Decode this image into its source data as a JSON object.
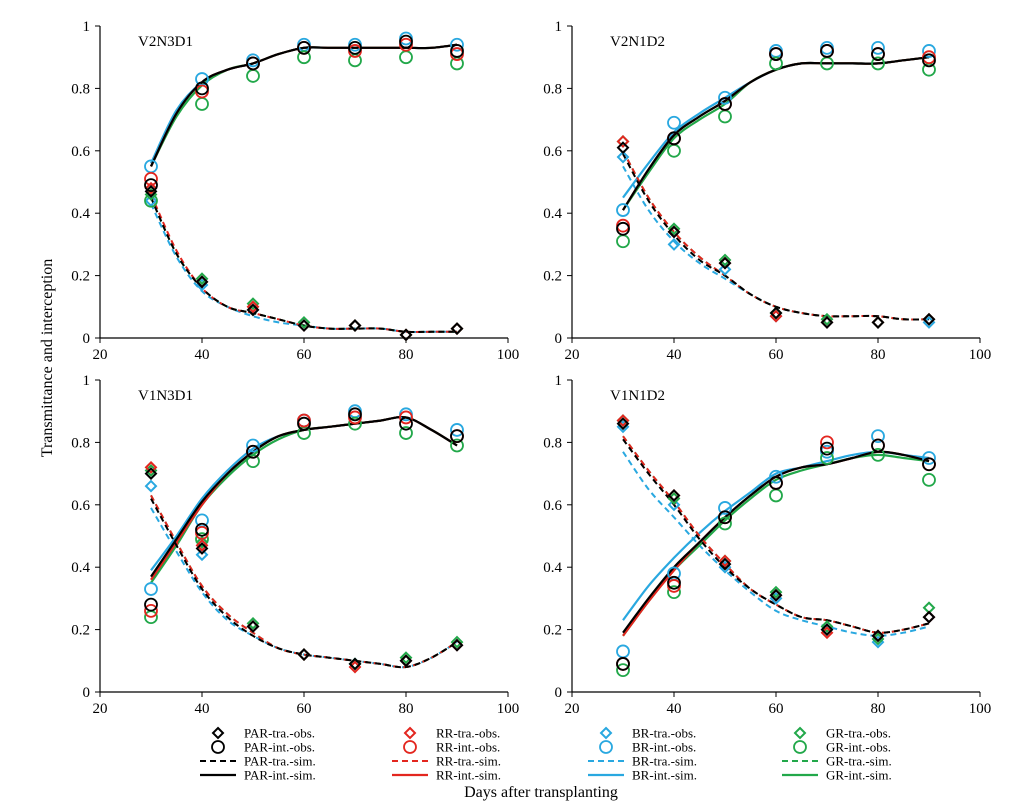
{
  "figure": {
    "ylabel": "Transmittance and interception",
    "xlabel": "Days after transplanting"
  },
  "colors": {
    "PAR": "#000000",
    "RR": "#e3261f",
    "BR": "#29a8e0",
    "GR": "#22a84a"
  },
  "legend": [
    {
      "key": "PAR",
      "kind": "tra-obs",
      "label": "PAR-tra.-obs."
    },
    {
      "key": "PAR",
      "kind": "int-obs",
      "label": "PAR-int.-obs."
    },
    {
      "key": "PAR",
      "kind": "tra-sim",
      "label": "PAR-tra.-sim."
    },
    {
      "key": "PAR",
      "kind": "int-sim",
      "label": "PAR-int.-sim."
    },
    {
      "key": "RR",
      "kind": "tra-obs",
      "label": "RR-tra.-obs."
    },
    {
      "key": "RR",
      "kind": "int-obs",
      "label": "RR-int.-obs."
    },
    {
      "key": "RR",
      "kind": "tra-sim",
      "label": "RR-tra.-sim."
    },
    {
      "key": "RR",
      "kind": "int-sim",
      "label": "RR-int.-sim."
    },
    {
      "key": "BR",
      "kind": "tra-obs",
      "label": "BR-tra.-obs."
    },
    {
      "key": "BR",
      "kind": "int-obs",
      "label": "BR-int.-obs."
    },
    {
      "key": "BR",
      "kind": "tra-sim",
      "label": "BR-tra.-sim."
    },
    {
      "key": "BR",
      "kind": "int-sim",
      "label": "BR-int.-sim."
    },
    {
      "key": "GR",
      "kind": "tra-obs",
      "label": "GR-tra.-obs."
    },
    {
      "key": "GR",
      "kind": "int-obs",
      "label": "GR-int.-obs."
    },
    {
      "key": "GR",
      "kind": "tra-sim",
      "label": "GR-tra.-sim."
    },
    {
      "key": "GR",
      "kind": "int-sim",
      "label": "GR-int.-sim."
    }
  ],
  "chart_data": [
    {
      "type": "scatter",
      "title": "V2N3D1",
      "xlim": [
        20,
        100
      ],
      "ylim": [
        0,
        1
      ],
      "xticks": [
        "20",
        "40",
        "60",
        "80",
        "100"
      ],
      "yticks": [
        "0",
        "0.2",
        "0.4",
        "0.6",
        "0.8",
        "1"
      ],
      "x_obs": [
        30,
        40,
        50,
        60,
        70,
        80,
        90
      ],
      "tra_obs": {
        "PAR": [
          0.47,
          0.18,
          0.09,
          0.04,
          0.04,
          0.01,
          0.03
        ],
        "RR": [
          0.48,
          0.18,
          0.1,
          0.04,
          0.04,
          0.01,
          0.03
        ],
        "BR": [
          0.44,
          0.17,
          0.09,
          0.04,
          0.04,
          0.01,
          0.03
        ],
        "GR": [
          0.46,
          0.19,
          0.11,
          0.05,
          0.04,
          0.01,
          0.03
        ]
      },
      "int_obs": {
        "PAR": [
          0.49,
          0.8,
          0.88,
          0.93,
          0.93,
          0.95,
          0.92
        ],
        "RR": [
          0.51,
          0.79,
          0.88,
          0.93,
          0.92,
          0.94,
          0.91
        ],
        "BR": [
          0.55,
          0.83,
          0.89,
          0.94,
          0.94,
          0.96,
          0.94
        ],
        "GR": [
          0.44,
          0.75,
          0.84,
          0.9,
          0.89,
          0.9,
          0.88
        ]
      },
      "x_sim": [
        30,
        35,
        40,
        45,
        50,
        55,
        60,
        65,
        70,
        75,
        80,
        85,
        90
      ],
      "tra_sim": {
        "PAR": [
          0.45,
          0.27,
          0.16,
          0.1,
          0.08,
          0.06,
          0.04,
          0.03,
          0.03,
          0.03,
          0.02,
          0.02,
          0.02
        ],
        "RR": [
          0.46,
          0.28,
          0.16,
          0.1,
          0.08,
          0.06,
          0.04,
          0.03,
          0.03,
          0.03,
          0.02,
          0.02,
          0.02
        ],
        "BR": [
          0.43,
          0.26,
          0.15,
          0.1,
          0.07,
          0.05,
          0.04,
          0.03,
          0.03,
          0.03,
          0.02,
          0.02,
          0.02
        ],
        "GR": [
          0.45,
          0.27,
          0.16,
          0.1,
          0.08,
          0.06,
          0.04,
          0.03,
          0.03,
          0.03,
          0.02,
          0.02,
          0.02
        ]
      },
      "int_sim": {
        "PAR": [
          0.55,
          0.72,
          0.82,
          0.86,
          0.88,
          0.91,
          0.93,
          0.93,
          0.93,
          0.93,
          0.93,
          0.93,
          0.94
        ],
        "RR": [
          0.55,
          0.72,
          0.82,
          0.86,
          0.88,
          0.91,
          0.93,
          0.93,
          0.93,
          0.93,
          0.93,
          0.93,
          0.94
        ],
        "BR": [
          0.56,
          0.73,
          0.82,
          0.86,
          0.88,
          0.91,
          0.93,
          0.93,
          0.93,
          0.93,
          0.93,
          0.93,
          0.94
        ],
        "GR": [
          0.55,
          0.71,
          0.81,
          0.86,
          0.88,
          0.91,
          0.93,
          0.93,
          0.93,
          0.93,
          0.93,
          0.93,
          0.94
        ]
      }
    },
    {
      "type": "scatter",
      "title": "V2N1D2",
      "xlim": [
        20,
        100
      ],
      "ylim": [
        0,
        1
      ],
      "xticks": [
        "20",
        "40",
        "60",
        "80",
        "100"
      ],
      "yticks": [
        "0",
        "0.2",
        "0.4",
        "0.6",
        "0.8",
        "1"
      ],
      "x_obs": [
        30,
        40,
        50,
        60,
        70,
        80,
        90
      ],
      "tra_obs": {
        "PAR": [
          0.61,
          0.34,
          0.24,
          0.08,
          0.05,
          0.05,
          0.06
        ],
        "RR": [
          0.63,
          0.34,
          0.24,
          0.07,
          0.05,
          0.05,
          0.06
        ],
        "BR": [
          0.58,
          0.3,
          0.22,
          0.07,
          0.05,
          0.05,
          0.05
        ],
        "GR": [
          0.63,
          0.35,
          0.25,
          0.08,
          0.06,
          0.05,
          0.06
        ]
      },
      "int_obs": {
        "PAR": [
          0.35,
          0.64,
          0.75,
          0.91,
          0.92,
          0.91,
          0.89
        ],
        "RR": [
          0.36,
          0.64,
          0.75,
          0.91,
          0.92,
          0.91,
          0.9
        ],
        "BR": [
          0.41,
          0.69,
          0.77,
          0.92,
          0.93,
          0.93,
          0.92
        ],
        "GR": [
          0.31,
          0.6,
          0.71,
          0.88,
          0.88,
          0.88,
          0.86
        ]
      },
      "x_sim": [
        30,
        35,
        40,
        45,
        50,
        55,
        60,
        65,
        70,
        75,
        80,
        85,
        90
      ],
      "tra_sim": {
        "PAR": [
          0.59,
          0.44,
          0.33,
          0.25,
          0.2,
          0.14,
          0.1,
          0.08,
          0.07,
          0.07,
          0.07,
          0.06,
          0.06
        ],
        "RR": [
          0.6,
          0.45,
          0.34,
          0.26,
          0.2,
          0.14,
          0.1,
          0.08,
          0.07,
          0.07,
          0.07,
          0.06,
          0.06
        ],
        "BR": [
          0.55,
          0.41,
          0.31,
          0.24,
          0.19,
          0.14,
          0.1,
          0.08,
          0.07,
          0.07,
          0.07,
          0.06,
          0.06
        ],
        "GR": [
          0.6,
          0.45,
          0.34,
          0.26,
          0.2,
          0.14,
          0.1,
          0.08,
          0.07,
          0.07,
          0.07,
          0.06,
          0.06
        ]
      },
      "int_sim": {
        "PAR": [
          0.41,
          0.54,
          0.65,
          0.71,
          0.76,
          0.82,
          0.86,
          0.88,
          0.88,
          0.88,
          0.88,
          0.89,
          0.9
        ],
        "RR": [
          0.41,
          0.54,
          0.65,
          0.71,
          0.76,
          0.82,
          0.86,
          0.88,
          0.88,
          0.88,
          0.88,
          0.89,
          0.9
        ],
        "BR": [
          0.45,
          0.56,
          0.66,
          0.72,
          0.77,
          0.82,
          0.86,
          0.88,
          0.88,
          0.88,
          0.88,
          0.89,
          0.9
        ],
        "GR": [
          0.41,
          0.53,
          0.64,
          0.7,
          0.75,
          0.82,
          0.86,
          0.88,
          0.88,
          0.88,
          0.88,
          0.89,
          0.9
        ]
      }
    },
    {
      "type": "scatter",
      "title": "V1N3D1",
      "xlim": [
        20,
        100
      ],
      "ylim": [
        0,
        1
      ],
      "xticks": [
        "20",
        "40",
        "60",
        "80",
        "100"
      ],
      "yticks": [
        "0",
        "0.2",
        "0.4",
        "0.6",
        "0.8",
        "1"
      ],
      "x_obs": [
        30,
        40,
        50,
        60,
        70,
        80,
        90
      ],
      "tra_obs": {
        "PAR": [
          0.7,
          0.46,
          0.21,
          0.12,
          0.09,
          0.1,
          0.15
        ],
        "RR": [
          0.72,
          0.47,
          0.21,
          0.12,
          0.08,
          0.1,
          0.15
        ],
        "BR": [
          0.66,
          0.44,
          0.21,
          0.12,
          0.09,
          0.1,
          0.15
        ],
        "GR": [
          0.71,
          0.48,
          0.22,
          0.12,
          0.09,
          0.11,
          0.16
        ]
      },
      "int_obs": {
        "PAR": [
          0.28,
          0.52,
          0.77,
          0.86,
          0.89,
          0.86,
          0.82
        ],
        "RR": [
          0.26,
          0.51,
          0.77,
          0.87,
          0.88,
          0.88,
          0.82
        ],
        "BR": [
          0.33,
          0.55,
          0.79,
          0.87,
          0.9,
          0.89,
          0.84
        ],
        "GR": [
          0.24,
          0.49,
          0.74,
          0.83,
          0.86,
          0.83,
          0.79
        ]
      },
      "x_sim": [
        30,
        35,
        40,
        45,
        50,
        55,
        60,
        65,
        70,
        75,
        80,
        85,
        90
      ],
      "tra_sim": {
        "PAR": [
          0.62,
          0.47,
          0.33,
          0.24,
          0.18,
          0.14,
          0.12,
          0.11,
          0.1,
          0.09,
          0.08,
          0.11,
          0.16
        ],
        "RR": [
          0.63,
          0.48,
          0.34,
          0.25,
          0.19,
          0.14,
          0.12,
          0.11,
          0.1,
          0.09,
          0.08,
          0.11,
          0.16
        ],
        "BR": [
          0.59,
          0.45,
          0.32,
          0.23,
          0.18,
          0.14,
          0.12,
          0.11,
          0.1,
          0.09,
          0.08,
          0.11,
          0.16
        ],
        "GR": [
          0.63,
          0.48,
          0.34,
          0.25,
          0.19,
          0.14,
          0.12,
          0.11,
          0.1,
          0.09,
          0.08,
          0.11,
          0.16
        ]
      },
      "int_sim": {
        "PAR": [
          0.37,
          0.49,
          0.61,
          0.7,
          0.77,
          0.82,
          0.84,
          0.85,
          0.86,
          0.87,
          0.88,
          0.84,
          0.79
        ],
        "RR": [
          0.36,
          0.48,
          0.6,
          0.7,
          0.77,
          0.82,
          0.84,
          0.85,
          0.86,
          0.87,
          0.88,
          0.84,
          0.79
        ],
        "BR": [
          0.39,
          0.5,
          0.62,
          0.71,
          0.78,
          0.82,
          0.84,
          0.85,
          0.86,
          0.87,
          0.88,
          0.84,
          0.79
        ],
        "GR": [
          0.35,
          0.47,
          0.6,
          0.69,
          0.76,
          0.81,
          0.84,
          0.85,
          0.86,
          0.87,
          0.88,
          0.84,
          0.79
        ]
      }
    },
    {
      "type": "scatter",
      "title": "V1N1D2",
      "xlim": [
        20,
        100
      ],
      "ylim": [
        0,
        1
      ],
      "xticks": [
        "20",
        "40",
        "60",
        "80",
        "100"
      ],
      "yticks": [
        "0",
        "0.2",
        "0.4",
        "0.6",
        "0.8",
        "1"
      ],
      "x_obs": [
        30,
        40,
        50,
        60,
        70,
        80,
        90
      ],
      "tra_obs": {
        "PAR": [
          0.86,
          0.63,
          0.41,
          0.31,
          0.2,
          0.18,
          0.24
        ],
        "RR": [
          0.87,
          0.63,
          0.42,
          0.31,
          0.19,
          0.18,
          0.24
        ],
        "BR": [
          0.85,
          0.6,
          0.4,
          0.3,
          0.2,
          0.16,
          0.24
        ],
        "GR": [
          0.87,
          0.62,
          0.42,
          0.32,
          0.21,
          0.17,
          0.27
        ]
      },
      "int_obs": {
        "PAR": [
          0.09,
          0.35,
          0.56,
          0.67,
          0.78,
          0.79,
          0.73
        ],
        "RR": [
          0.09,
          0.34,
          0.56,
          0.67,
          0.8,
          0.79,
          0.73
        ],
        "BR": [
          0.13,
          0.38,
          0.59,
          0.69,
          0.77,
          0.82,
          0.75
        ],
        "GR": [
          0.07,
          0.32,
          0.54,
          0.63,
          0.75,
          0.76,
          0.68
        ]
      },
      "x_sim": [
        30,
        35,
        40,
        45,
        50,
        55,
        60,
        65,
        70,
        75,
        80,
        85,
        90
      ],
      "tra_sim": {
        "PAR": [
          0.81,
          0.7,
          0.6,
          0.49,
          0.4,
          0.33,
          0.28,
          0.24,
          0.23,
          0.21,
          0.19,
          0.2,
          0.22
        ],
        "RR": [
          0.82,
          0.71,
          0.61,
          0.5,
          0.41,
          0.33,
          0.28,
          0.24,
          0.23,
          0.21,
          0.19,
          0.2,
          0.22
        ],
        "BR": [
          0.77,
          0.65,
          0.56,
          0.47,
          0.39,
          0.32,
          0.26,
          0.23,
          0.21,
          0.19,
          0.18,
          0.19,
          0.21
        ],
        "GR": [
          0.82,
          0.71,
          0.61,
          0.5,
          0.41,
          0.33,
          0.28,
          0.24,
          0.23,
          0.21,
          0.19,
          0.2,
          0.22
        ]
      },
      "int_sim": {
        "PAR": [
          0.19,
          0.3,
          0.4,
          0.48,
          0.56,
          0.63,
          0.69,
          0.72,
          0.73,
          0.75,
          0.77,
          0.76,
          0.74
        ],
        "RR": [
          0.18,
          0.29,
          0.39,
          0.48,
          0.56,
          0.63,
          0.69,
          0.72,
          0.73,
          0.75,
          0.77,
          0.76,
          0.74
        ],
        "BR": [
          0.23,
          0.34,
          0.43,
          0.51,
          0.58,
          0.64,
          0.7,
          0.72,
          0.74,
          0.76,
          0.77,
          0.76,
          0.75
        ],
        "GR": [
          0.18,
          0.29,
          0.39,
          0.47,
          0.55,
          0.62,
          0.68,
          0.71,
          0.73,
          0.75,
          0.76,
          0.75,
          0.74
        ]
      }
    }
  ]
}
